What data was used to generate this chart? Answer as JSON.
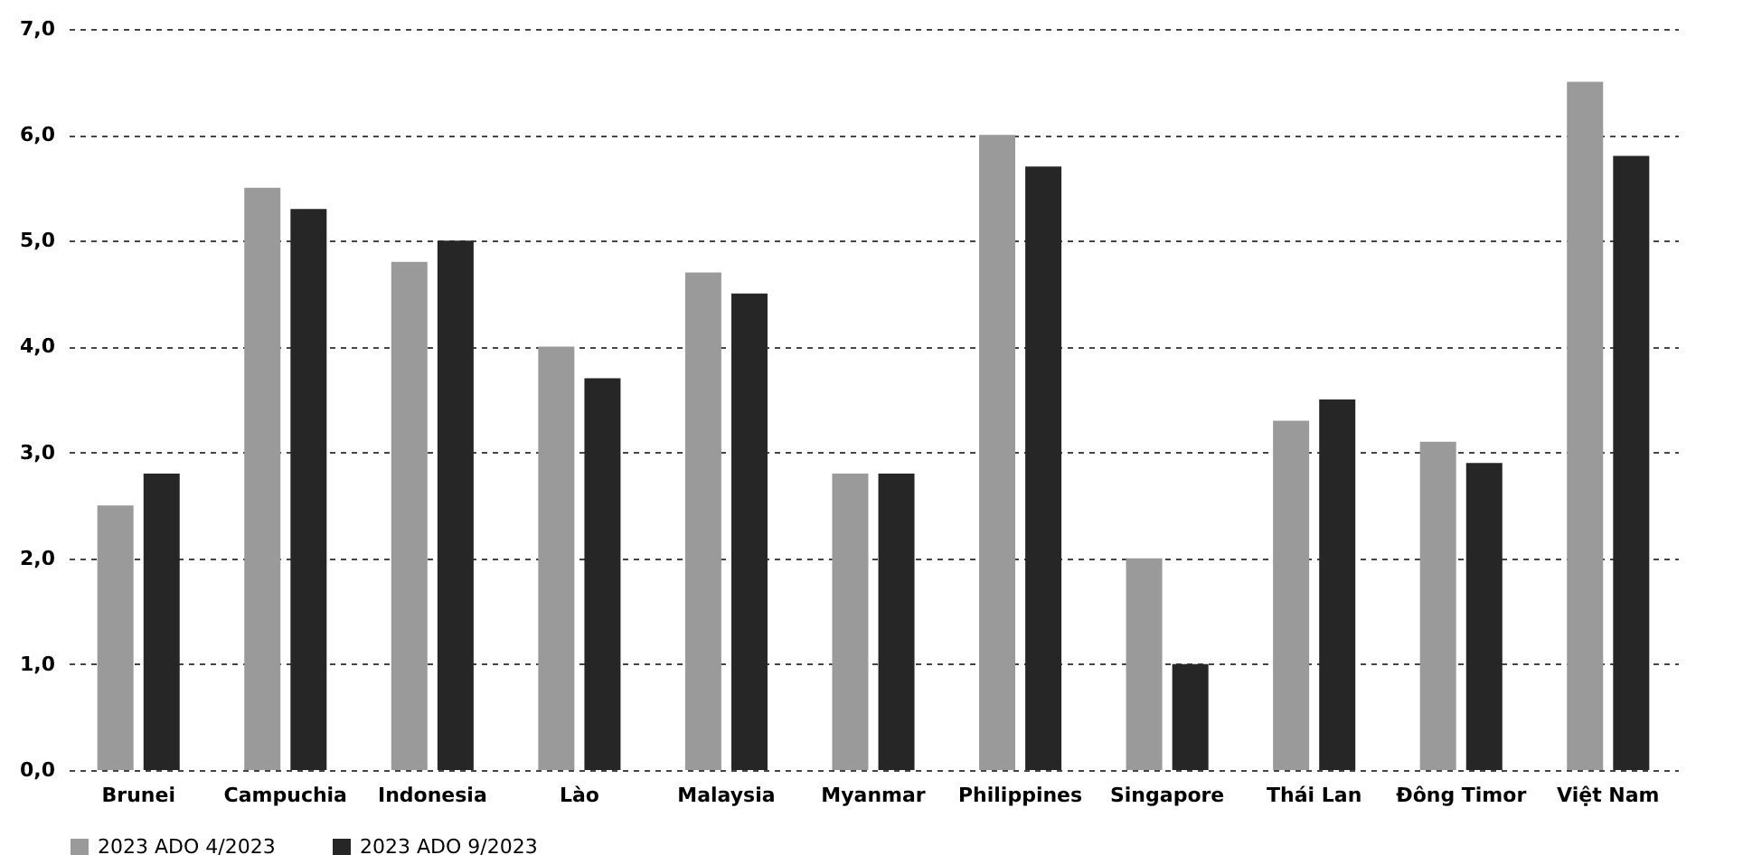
{
  "chart_data": {
    "type": "bar",
    "categories": [
      "Brunei",
      "Campuchia",
      "Indonesia",
      "Lào",
      "Malaysia",
      "Myanmar",
      "Philippines",
      "Singapore",
      "Thái Lan",
      "Đông Timor",
      "Việt Nam"
    ],
    "series": [
      {
        "name": "2023 ADO 4/2023",
        "color": "#9a9a9a",
        "values": [
          2.5,
          5.5,
          4.8,
          4.0,
          4.7,
          2.8,
          6.0,
          2.0,
          3.3,
          3.1,
          6.5
        ]
      },
      {
        "name": "2023 ADO 9/2023",
        "color": "#262626",
        "values": [
          2.8,
          5.3,
          5.0,
          3.7,
          4.5,
          2.8,
          5.7,
          1.0,
          3.5,
          2.9,
          5.8
        ]
      }
    ],
    "ylim": [
      0,
      7
    ],
    "yticks": [
      {
        "value": 0,
        "label": "0,0"
      },
      {
        "value": 1,
        "label": "1,0"
      },
      {
        "value": 2,
        "label": "2,0"
      },
      {
        "value": 3,
        "label": "3,0"
      },
      {
        "value": 4,
        "label": "4,0"
      },
      {
        "value": 5,
        "label": "5,0"
      },
      {
        "value": 6,
        "label": "6,0"
      },
      {
        "value": 7,
        "label": "7,0"
      }
    ],
    "grid": "y",
    "legend": "bottom"
  }
}
